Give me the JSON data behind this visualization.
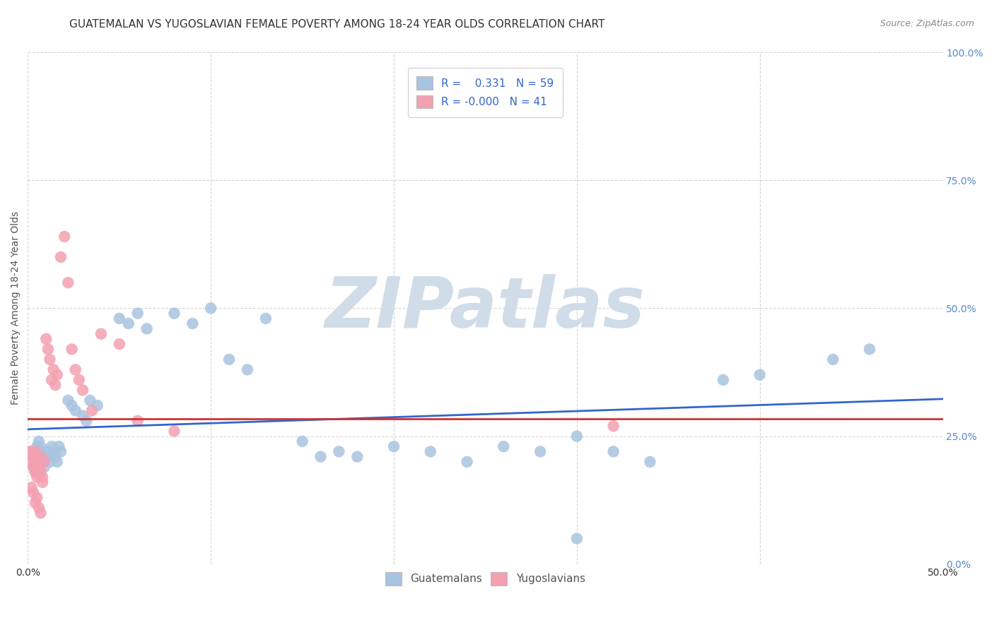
{
  "title": "GUATEMALAN VS YUGOSLAVIAN FEMALE POVERTY AMONG 18-24 YEAR OLDS CORRELATION CHART",
  "source": "Source: ZipAtlas.com",
  "ylabel": "Female Poverty Among 18-24 Year Olds",
  "xlim": [
    0.0,
    0.5
  ],
  "ylim": [
    0.0,
    1.0
  ],
  "xticks": [
    0.0,
    0.1,
    0.2,
    0.3,
    0.4,
    0.5
  ],
  "yticks": [
    0.0,
    0.25,
    0.5,
    0.75,
    1.0
  ],
  "xtick_labels_show": [
    "0.0%",
    "",
    "",
    "",
    "",
    "50.0%"
  ],
  "ytick_labels": [
    "0.0%",
    "25.0%",
    "50.0%",
    "75.0%",
    "100.0%"
  ],
  "guatemalan_color": "#a8c4e0",
  "yugoslavian_color": "#f4a0b0",
  "guatemalan_line_color": "#3366cc",
  "yugoslavian_line_color": "#cc3333",
  "background_color": "#ffffff",
  "watermark_text": "ZIPatlas",
  "watermark_color": "#d0dce8",
  "guatemalan_x": [
    0.002,
    0.003,
    0.004,
    0.005,
    0.005,
    0.006,
    0.006,
    0.007,
    0.007,
    0.008,
    0.009,
    0.01,
    0.011,
    0.012,
    0.013,
    0.014,
    0.015,
    0.016,
    0.017,
    0.018,
    0.022,
    0.024,
    0.026,
    0.03,
    0.032,
    0.034,
    0.038,
    0.05,
    0.055,
    0.06,
    0.065,
    0.08,
    0.09,
    0.1,
    0.11,
    0.12,
    0.13,
    0.15,
    0.16,
    0.17,
    0.18,
    0.2,
    0.22,
    0.24,
    0.26,
    0.28,
    0.3,
    0.32,
    0.34,
    0.38,
    0.4,
    0.44,
    0.46,
    0.003,
    0.004,
    0.005,
    0.006,
    0.008,
    0.3
  ],
  "guatemalan_y": [
    0.22,
    0.21,
    0.2,
    0.22,
    0.23,
    0.24,
    0.21,
    0.22,
    0.23,
    0.2,
    0.19,
    0.21,
    0.22,
    0.2,
    0.23,
    0.22,
    0.21,
    0.2,
    0.23,
    0.22,
    0.32,
    0.31,
    0.3,
    0.29,
    0.28,
    0.32,
    0.31,
    0.48,
    0.47,
    0.49,
    0.46,
    0.49,
    0.47,
    0.5,
    0.4,
    0.38,
    0.48,
    0.24,
    0.21,
    0.22,
    0.21,
    0.23,
    0.22,
    0.2,
    0.23,
    0.22,
    0.25,
    0.22,
    0.2,
    0.36,
    0.37,
    0.4,
    0.42,
    0.19,
    0.18,
    0.2,
    0.19,
    0.2,
    0.05
  ],
  "yugoslavian_x": [
    0.001,
    0.002,
    0.003,
    0.003,
    0.004,
    0.004,
    0.005,
    0.005,
    0.006,
    0.006,
    0.007,
    0.007,
    0.008,
    0.008,
    0.009,
    0.01,
    0.011,
    0.012,
    0.013,
    0.014,
    0.015,
    0.016,
    0.018,
    0.02,
    0.022,
    0.024,
    0.026,
    0.028,
    0.03,
    0.035,
    0.04,
    0.05,
    0.06,
    0.08,
    0.32,
    0.002,
    0.003,
    0.004,
    0.005,
    0.006,
    0.007
  ],
  "yugoslavian_y": [
    0.22,
    0.2,
    0.21,
    0.19,
    0.22,
    0.18,
    0.2,
    0.17,
    0.19,
    0.18,
    0.21,
    0.18,
    0.16,
    0.17,
    0.2,
    0.44,
    0.42,
    0.4,
    0.36,
    0.38,
    0.35,
    0.37,
    0.6,
    0.64,
    0.55,
    0.42,
    0.38,
    0.36,
    0.34,
    0.3,
    0.45,
    0.43,
    0.28,
    0.26,
    0.27,
    0.15,
    0.14,
    0.12,
    0.13,
    0.11,
    0.1
  ],
  "title_fontsize": 11,
  "axis_label_fontsize": 10,
  "tick_fontsize": 10,
  "legend_fontsize": 11,
  "source_fontsize": 9
}
